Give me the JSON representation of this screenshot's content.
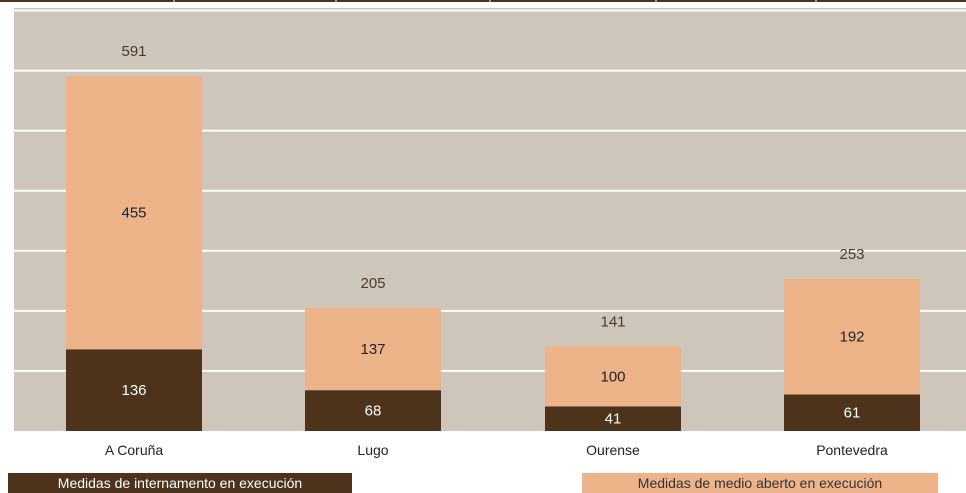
{
  "chart_data": {
    "type": "bar",
    "stacked": true,
    "categories": [
      "A Coruña",
      "Lugo",
      "Ourense",
      "Pontevedra"
    ],
    "series": [
      {
        "name": "Medidas de internamento en execución",
        "values": [
          136,
          68,
          41,
          61
        ]
      },
      {
        "name": "Medidas de medio aberto en execución",
        "values": [
          455,
          137,
          100,
          192
        ]
      }
    ],
    "totals": [
      591,
      205,
      141,
      253
    ],
    "ylim": [
      0,
      700
    ],
    "grid": true,
    "legend_position": "bottom",
    "colors": {
      "plot_background": "#cfc6bb",
      "gridline": "#ffffff",
      "internamento": "#4d331b",
      "medio_aberto": "#edb48a",
      "total_label": "#4d3a2a",
      "axis_line": "#4d331b"
    }
  }
}
